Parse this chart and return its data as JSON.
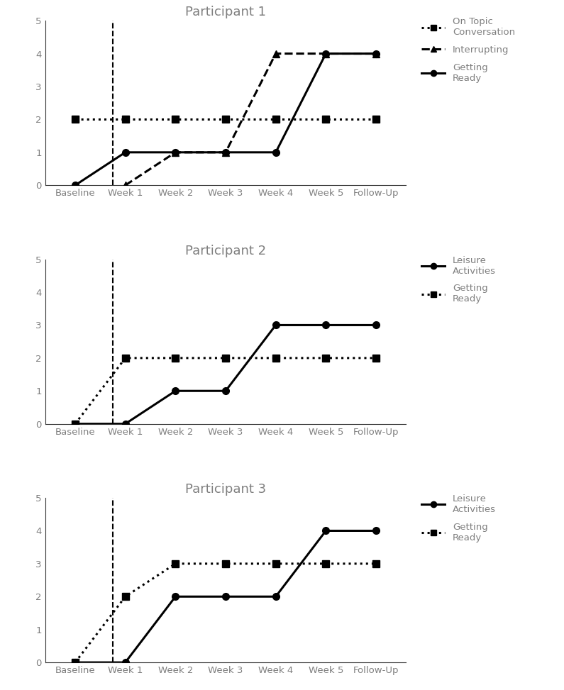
{
  "x_labels": [
    "Baseline",
    "Week 1",
    "Week 2",
    "Week 3",
    "Week 4",
    "Week 5",
    "Follow-Up"
  ],
  "x_values": [
    0,
    1,
    2,
    3,
    4,
    5,
    6
  ],
  "dashed_line_x": 0.75,
  "p1_title": "Participant 1",
  "p1_on_topic": [
    2,
    2,
    2,
    2,
    2,
    2,
    2
  ],
  "p1_interrupting_x": [
    1,
    2,
    3,
    4,
    5,
    6
  ],
  "p1_interrupting_y": [
    0,
    1,
    1,
    4,
    4,
    4
  ],
  "p1_getting_ready": [
    0,
    1,
    1,
    1,
    1,
    4,
    4
  ],
  "p2_title": "Participant 2",
  "p2_leisure": [
    0,
    0,
    1,
    1,
    3,
    3,
    3
  ],
  "p2_getting_ready": [
    0,
    2,
    2,
    2,
    2,
    2,
    2
  ],
  "p3_title": "Participant 3",
  "p3_leisure": [
    0,
    0,
    2,
    2,
    2,
    4,
    4
  ],
  "p3_getting_ready": [
    0,
    2,
    3,
    3,
    3,
    3,
    3
  ],
  "ylim": [
    0,
    5
  ],
  "yticks": [
    0,
    1,
    2,
    3,
    4,
    5
  ],
  "line_color": "#000000",
  "text_color": "#7f7f7f",
  "linewidth": 2.2,
  "markersize": 7,
  "legend_fontsize": 9.5,
  "title_fontsize": 13
}
